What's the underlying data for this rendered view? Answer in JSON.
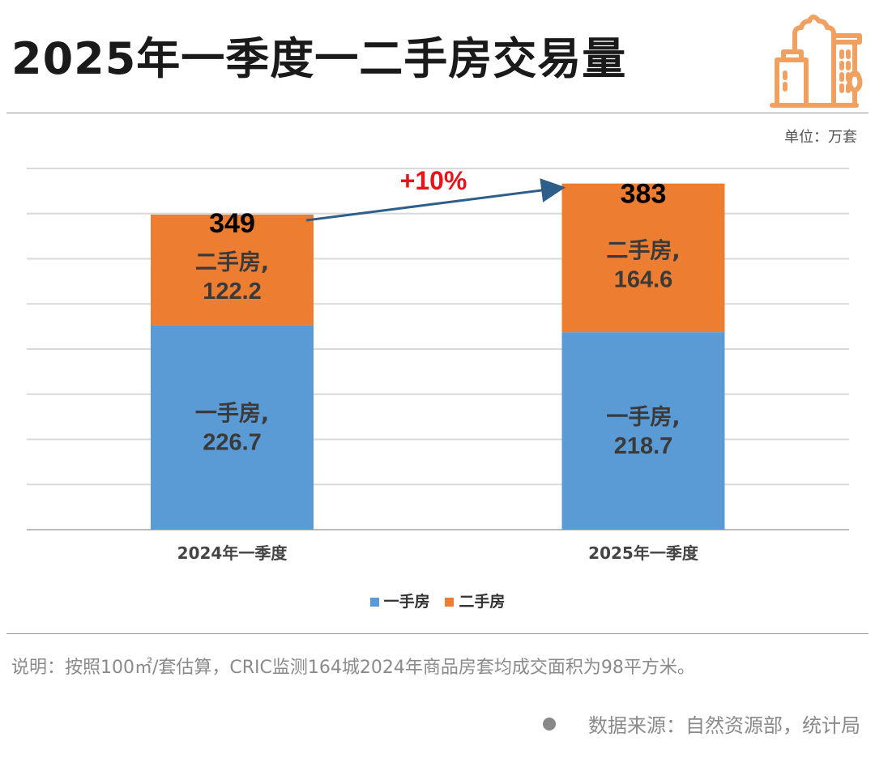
{
  "title": "2025年一季度一二手房交易量",
  "unit": "单位：万套",
  "colors": {
    "new": "#5b9bd5",
    "second": "#ed7d31",
    "annotation": "#e8141b",
    "arrow": "#2e5f8a",
    "logo": "#f0a060"
  },
  "icon": "city-buildings-icon",
  "chart_data": {
    "type": "bar",
    "stacked": true,
    "categories": [
      "2024年一季度",
      "2025年一季度"
    ],
    "series": [
      {
        "name": "一手房",
        "values": [
          226.7,
          218.7
        ],
        "labels": [
          "一手房,",
          "一手房,"
        ]
      },
      {
        "name": "二手房",
        "values": [
          122.2,
          164.6
        ],
        "labels": [
          "二手房,",
          "二手房,"
        ]
      }
    ],
    "totals": [
      "349",
      "383"
    ],
    "annotation": "+10%",
    "ylim": [
      0,
      400
    ],
    "grid": true,
    "legend": "bottom",
    "xlabel": "",
    "ylabel": ""
  },
  "note": "说明：按照100㎡/套估算，CRIC监测164城2024年商品房套均成交面积为98平方米。",
  "source": "数据来源：自然资源部，统计局"
}
